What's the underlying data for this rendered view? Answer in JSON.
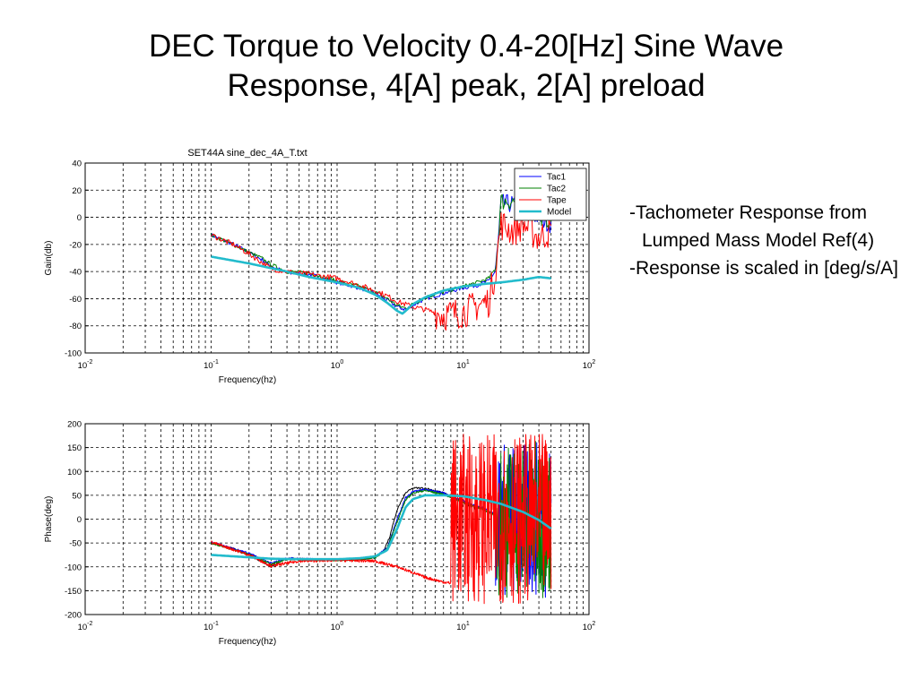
{
  "slide": {
    "title_line1": "DEC Torque to Velocity 0.4-20[Hz] Sine Wave",
    "title_line2": "Response, 4[A] peak, 2[A] preload"
  },
  "notes": [
    "-Tachometer Response from Lumped Mass Model Ref(4)",
    "-Response  is scaled in [deg/s/A]"
  ],
  "colors": {
    "tac1": "#0000ff",
    "tac2": "#008000",
    "tape": "#ff0000",
    "model": "#22bbcc",
    "black_trace": "#000000"
  },
  "chart_data": [
    {
      "type": "line",
      "title": "SET44A    sine_dec_4A_T.txt",
      "xlabel": "Frequency(hz)",
      "ylabel": "Gain(db)",
      "xscale": "log",
      "xlim": [
        0.01,
        100
      ],
      "ylim": [
        -100,
        40
      ],
      "xtick_exponents": [
        "-2",
        "-1",
        "0",
        "1",
        "2"
      ],
      "yticks": [
        40,
        20,
        0,
        -20,
        -40,
        -60,
        -80,
        -100
      ],
      "grid": true,
      "legend": {
        "placement": "top-right",
        "entries": [
          "Tac1",
          "Tac2",
          "Tape",
          "Model"
        ]
      },
      "series": [
        {
          "name": "Tac1",
          "color_key": "tac1",
          "noise": 1.5,
          "noise_hi": 7,
          "noise_start": 18,
          "x": [
            0.1,
            0.15,
            0.2,
            0.25,
            0.3,
            0.4,
            0.6,
            1,
            1.5,
            2,
            2.5,
            3,
            3.5,
            4,
            5,
            7,
            10,
            13,
            16,
            18,
            19,
            20,
            25,
            30,
            40,
            50
          ],
          "y": [
            -13,
            -20,
            -26,
            -31,
            -36,
            -41,
            -42,
            -48,
            -52,
            -56,
            -61,
            -66,
            -68,
            -65,
            -60,
            -56,
            -52,
            -50,
            -47,
            -40,
            -20,
            10,
            10,
            5,
            0,
            -5
          ]
        },
        {
          "name": "Tac2",
          "color_key": "tac2",
          "noise": 1.5,
          "noise_hi": 7,
          "noise_start": 18,
          "x": [
            0.1,
            0.15,
            0.2,
            0.25,
            0.3,
            0.4,
            0.6,
            1,
            1.5,
            2,
            2.5,
            3,
            3.5,
            4,
            5,
            7,
            10,
            13,
            16,
            18,
            19,
            20,
            25,
            30,
            40,
            50
          ],
          "y": [
            -13,
            -20,
            -26,
            -30,
            -35,
            -40,
            -41,
            -47,
            -51,
            -55,
            -60,
            -65,
            -67,
            -64,
            -59,
            -55,
            -51,
            -48,
            -45,
            -38,
            -18,
            12,
            12,
            6,
            2,
            -3
          ]
        },
        {
          "name": "Tape",
          "color_key": "tape",
          "noise": 2,
          "noise_hi": 12,
          "noise_start": 6,
          "x": [
            0.1,
            0.15,
            0.2,
            0.25,
            0.3,
            0.4,
            0.6,
            1,
            1.5,
            2,
            2.5,
            3,
            4,
            5,
            7,
            10,
            13,
            16,
            18,
            20,
            25,
            30,
            40,
            50
          ],
          "y": [
            -13,
            -20,
            -27,
            -33,
            -38,
            -40,
            -42,
            -45,
            -50,
            -54,
            -58,
            -62,
            -66,
            -68,
            -72,
            -70,
            -65,
            -62,
            -40,
            -5,
            -10,
            -5,
            -15,
            -10
          ]
        },
        {
          "name": "Model",
          "color_key": "model",
          "noise": 0,
          "noise_hi": 0,
          "noise_start": 100,
          "x": [
            0.1,
            0.2,
            0.4,
            0.6,
            1,
            1.5,
            2,
            2.5,
            3,
            3.3,
            3.6,
            4,
            5,
            7,
            10,
            15,
            20,
            30,
            40,
            50
          ],
          "y": [
            -29,
            -34,
            -40,
            -44,
            -48,
            -52,
            -57,
            -63,
            -69,
            -71,
            -68,
            -64,
            -59,
            -54,
            -51,
            -49,
            -48,
            -46,
            -44,
            -45
          ]
        }
      ]
    },
    {
      "type": "line",
      "title": "",
      "xlabel": "Frequency(hz)",
      "ylabel": "Phase(deg)",
      "xscale": "log",
      "xlim": [
        0.01,
        100
      ],
      "ylim": [
        -200,
        200
      ],
      "xtick_exponents": [
        "-2",
        "-1",
        "0",
        "1",
        "2"
      ],
      "yticks": [
        200,
        150,
        100,
        50,
        0,
        -50,
        -100,
        -150,
        -200
      ],
      "grid": true,
      "series": [
        {
          "name": "",
          "color_key": "black_trace",
          "noise": 2,
          "noise_hi": 4,
          "noise_start": 10,
          "x": [
            0.1,
            0.15,
            0.2,
            0.25,
            0.3,
            0.4,
            0.6,
            1,
            1.5,
            2,
            2.3,
            2.6,
            3,
            3.5,
            4,
            5,
            7,
            10,
            13
          ],
          "y": [
            -50,
            -62,
            -75,
            -88,
            -100,
            -82,
            -84,
            -85,
            -84,
            -80,
            -70,
            -40,
            20,
            55,
            65,
            65,
            55,
            35,
            20
          ]
        },
        {
          "name": "Tac1",
          "color_key": "tac1",
          "noise": 2,
          "noise_hi": 165,
          "noise_start": 18,
          "x": [
            0.1,
            0.2,
            0.3,
            0.4,
            0.6,
            1,
            1.5,
            2,
            2.5,
            3,
            3.5,
            4,
            5,
            7,
            10,
            14,
            18,
            20,
            30,
            50
          ],
          "y": [
            -48,
            -72,
            -92,
            -82,
            -84,
            -85,
            -84,
            -80,
            -60,
            0,
            45,
            58,
            62,
            55,
            38,
            25,
            10,
            0,
            0,
            0
          ]
        },
        {
          "name": "Tac2",
          "color_key": "tac2",
          "noise": 2,
          "noise_hi": 165,
          "noise_start": 18,
          "x": [
            0.1,
            0.2,
            0.3,
            0.4,
            0.6,
            1,
            1.5,
            2,
            2.5,
            3,
            3.5,
            4,
            5,
            7,
            10,
            14,
            18,
            20,
            30,
            50
          ],
          "y": [
            -50,
            -74,
            -95,
            -84,
            -86,
            -86,
            -85,
            -81,
            -62,
            -5,
            40,
            55,
            60,
            52,
            35,
            22,
            8,
            0,
            0,
            0
          ]
        },
        {
          "name": "Tape",
          "color_key": "tape",
          "noise": 3,
          "noise_hi": 178,
          "noise_start": 8,
          "x": [
            0.1,
            0.2,
            0.3,
            0.5,
            1,
            2,
            3,
            4,
            5,
            7,
            10,
            15,
            20,
            30,
            50
          ],
          "y": [
            -48,
            -75,
            -98,
            -88,
            -86,
            -88,
            -100,
            -112,
            -122,
            -132,
            -138,
            -110,
            0,
            0,
            0
          ]
        },
        {
          "name": "Model",
          "color_key": "model",
          "noise": 0,
          "noise_hi": 0,
          "noise_start": 100,
          "x": [
            0.1,
            0.2,
            0.3,
            0.5,
            1,
            1.5,
            2,
            2.5,
            3,
            3.5,
            4,
            5,
            7,
            10,
            15,
            20,
            30,
            40,
            50
          ],
          "y": [
            -75,
            -80,
            -83,
            -84,
            -84,
            -82,
            -78,
            -65,
            -20,
            25,
            42,
            50,
            50,
            48,
            40,
            32,
            15,
            -2,
            -20
          ]
        }
      ]
    }
  ]
}
